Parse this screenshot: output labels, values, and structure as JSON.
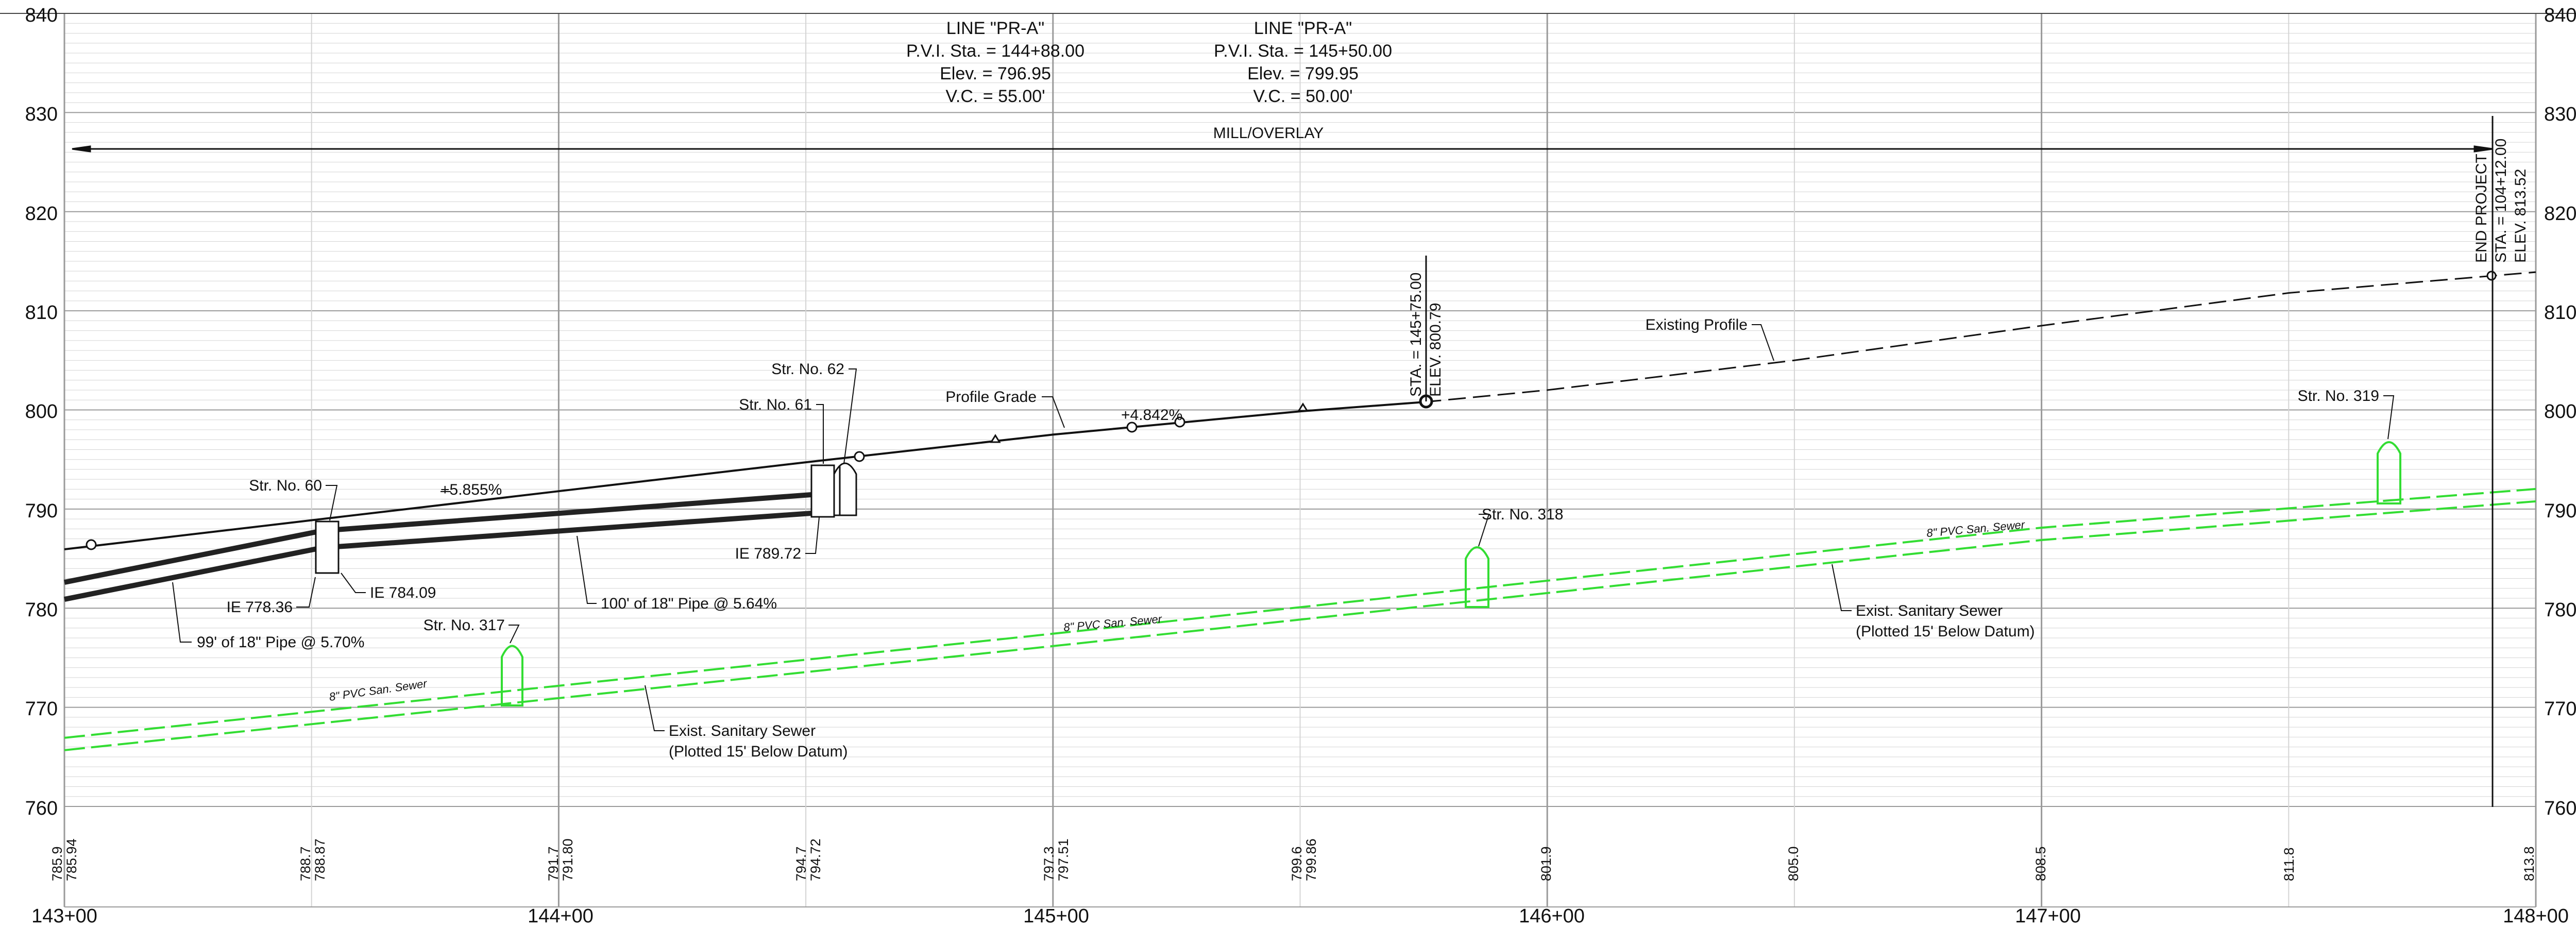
{
  "chart_data": {
    "type": "profile",
    "y_range": [
      760,
      840
    ],
    "y_ticks": [
      "760",
      "770",
      "780",
      "790",
      "800",
      "810",
      "820",
      "830",
      "840"
    ],
    "x_range_sta": [
      14300,
      14800
    ],
    "x_ticks": [
      "143+00",
      "144+00",
      "145+00",
      "146+00",
      "147+00",
      "148+00"
    ],
    "bottom_elevations": [
      {
        "sta": 14300,
        "labels": [
          "785.9",
          "785.94"
        ]
      },
      {
        "sta": 14350,
        "labels": [
          "788.7",
          "788.87"
        ]
      },
      {
        "sta": 14400,
        "labels": [
          "791.7",
          "791.80"
        ]
      },
      {
        "sta": 14450,
        "labels": [
          "794.7",
          "794.72"
        ]
      },
      {
        "sta": 14500,
        "labels": [
          "797.3",
          "797.51"
        ]
      },
      {
        "sta": 14550,
        "labels": [
          "799.6",
          "799.86"
        ]
      },
      {
        "sta": 14600,
        "labels": [
          "801.9"
        ]
      },
      {
        "sta": 14650,
        "labels": [
          "805.0"
        ]
      },
      {
        "sta": 14700,
        "labels": [
          "808.5"
        ]
      },
      {
        "sta": 14750,
        "labels": [
          "811.8"
        ]
      },
      {
        "sta": 14800,
        "labels": [
          "813.8"
        ]
      }
    ],
    "existing_profile": [
      {
        "sta": 14575,
        "elev": 800.79
      },
      {
        "sta": 14600,
        "elev": 802.0
      },
      {
        "sta": 14650,
        "elev": 805.0
      },
      {
        "sta": 14700,
        "elev": 808.5
      },
      {
        "sta": 14750,
        "elev": 811.8
      },
      {
        "sta": 14800,
        "elev": 813.9
      }
    ],
    "proposed_grade": [
      {
        "sta": 14300,
        "elev": 785.94
      },
      {
        "sta": 14400,
        "elev": 791.8
      },
      {
        "sta": 14450,
        "elev": 794.72
      },
      {
        "sta": 14500,
        "elev": 797.51
      },
      {
        "sta": 14550,
        "elev": 799.86
      },
      {
        "sta": 14575,
        "elev": 800.79
      }
    ],
    "storm_pipes": [
      {
        "sta_start": 14300,
        "sta_end": 14350,
        "invert_start": 781.5,
        "invert_end": 784.09
      },
      {
        "sta_start": 14350,
        "sta_end": 14450,
        "invert_start": 784.09,
        "invert_end": 789.72
      }
    ],
    "sanitary_sewer": [
      {
        "sta": 14300,
        "elev": 766.3
      },
      {
        "sta": 14500,
        "elev": 776.8
      },
      {
        "sta": 14700,
        "elev": 787.5
      },
      {
        "sta": 14800,
        "elev": 791.4
      }
    ],
    "structures_storm": [
      {
        "sta": 14353,
        "top": 788.7,
        "bottom": 783.4
      },
      {
        "sta": 14451,
        "top": 794.5,
        "bottom": 789.6
      },
      {
        "sta": 14457,
        "top": 795.2,
        "bottom": 789.9
      }
    ],
    "structures_sanitary": [
      {
        "sta": 14390,
        "top": 776.2,
        "bottom": 770.2
      },
      {
        "sta": 14579,
        "top": 786.4,
        "bottom": 780.2
      },
      {
        "sta": 14767,
        "top": 797.6,
        "bottom": 790.7
      }
    ]
  },
  "pvi_blocks": [
    {
      "title": "LINE \"PR-A\"",
      "sta": "P.V.I. Sta. = 144+88.00",
      "elev": "Elev. = 796.95",
      "vc": "V.C. = 55.00'"
    },
    {
      "title": "LINE \"PR-A\"",
      "sta": "P.V.I. Sta. = 145+50.00",
      "elev": "Elev. = 799.95",
      "vc": "V.C. = 50.00'"
    }
  ],
  "labels": {
    "mill_overlay": "MILL/OVERLAY",
    "end_project": [
      "END PROJECT",
      "STA. = 104+12.00",
      "ELEV. 813.52"
    ],
    "sta_145_75": [
      "STA. = 145+75.00",
      "ELEV. 800.79"
    ],
    "existing_profile": "Existing Profile",
    "profile_grade": "Profile Grade",
    "grade_1": "+5.855%",
    "grade_2": "+4.842%",
    "str_60": "Str. No. 60",
    "str_61": "Str. No. 61",
    "str_62": "Str. No. 62",
    "str_317": "Str. No. 317",
    "str_318": "Str. No. 318",
    "str_319": "Str. No. 319",
    "ie_778": "IE 778.36",
    "ie_784": "IE 784.09",
    "ie_789": "IE 789.72",
    "pipe_99": "99' of 18\" Pipe @ 5.70%",
    "pipe_100": "100' of 18\" Pipe @ 5.64%",
    "sewer_1": "Exist. Sanitary Sewer",
    "sewer_1b": "(Plotted 15' Below Datum)",
    "sewer_2": "Exist. Sanitary Sewer",
    "sewer_2b": "(Plotted 15' Below Datum)",
    "pvc_1": "8\" PVC San. Sewer",
    "pvc_2": "8\" PVC San. Sewer",
    "pvc_3": "8\" PVC San. Sewer"
  },
  "colors": {
    "grid_minor": "#d4d4d4",
    "grid_major": "#9a9a9a",
    "sewer": "#33dd33",
    "ink": "#111111"
  }
}
